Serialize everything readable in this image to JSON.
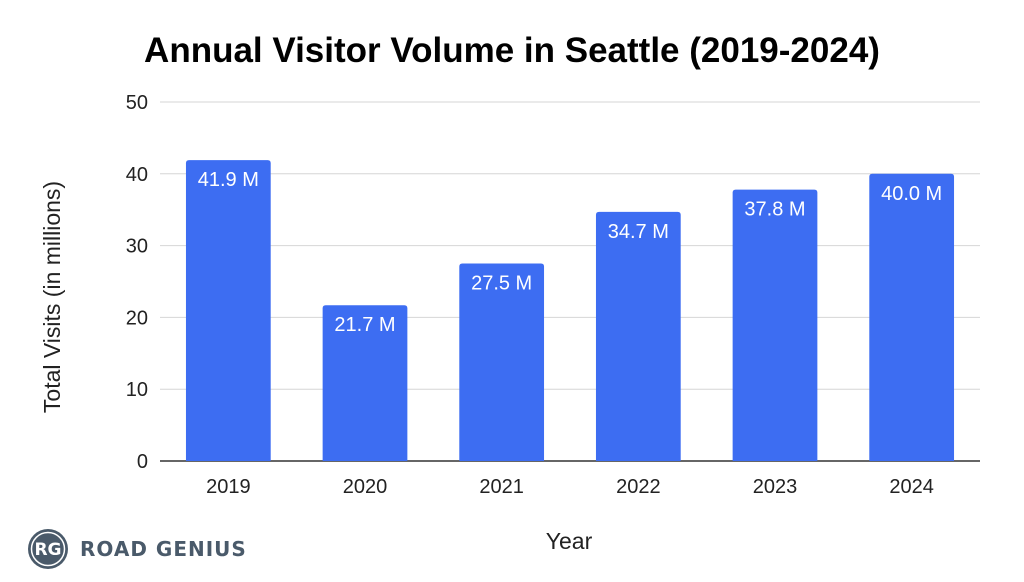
{
  "chart_data": {
    "type": "bar",
    "title": "Annual Visitor Volume in Seattle (2019-2024)",
    "xlabel": "Year",
    "ylabel": "Total Visits (in millions)",
    "categories": [
      "2019",
      "2020",
      "2021",
      "2022",
      "2023",
      "2024"
    ],
    "values": [
      41.9,
      21.7,
      27.5,
      34.7,
      37.8,
      40.0
    ],
    "data_labels": [
      "41.9 M",
      "21.7 M",
      "27.5 M",
      "34.7 M",
      "37.8 M",
      "40.0 M"
    ],
    "ylim": [
      0,
      50
    ],
    "yticks": [
      0,
      10,
      20,
      30,
      40,
      50
    ],
    "grid": true,
    "bar_color": "#3d6df2"
  },
  "logo": {
    "initials": "RG",
    "name": "ROAD GENIUS",
    "color": "#4a5a6a"
  }
}
